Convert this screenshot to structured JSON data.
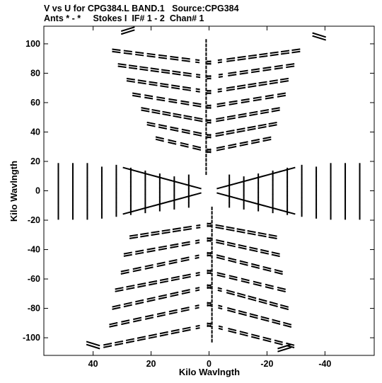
{
  "header": {
    "line1": "V vs U for CPG384.L BAND.1   Source:CPG384",
    "line2": "Ants * - *     Stokes I  IF# 1 - 2  Chan# 1"
  },
  "chart_data": {
    "type": "scatter",
    "title": "V vs U for CPG384.L BAND.1   Source:CPG384",
    "subtitle": "Ants * - *     Stokes I  IF# 1 - 2  Chan# 1",
    "xlabel": "Kilo Wavlngth",
    "ylabel": "Kilo Wavlngth",
    "xlim": [
      57,
      -57
    ],
    "ylim": [
      -112,
      112
    ],
    "x_reversed": true,
    "grid": false,
    "legend": "none",
    "x_ticks": [
      40,
      20,
      0,
      -20,
      -40
    ],
    "y_ticks": [
      100,
      80,
      60,
      40,
      20,
      0,
      -20,
      -40,
      -60,
      -80,
      -100
    ],
    "marker": "short line segments (uv tracks)",
    "color": "#000000",
    "upper_arms": [
      {
        "y": 96,
        "x_left": 32,
        "x_right": -30,
        "x_vertex": 0,
        "y_vertex": 88
      },
      {
        "y": 86,
        "x_left": 30,
        "x_right": -28,
        "x_vertex": 0,
        "y_vertex": 78
      },
      {
        "y": 76,
        "x_left": 27,
        "x_right": -26,
        "x_vertex": 0,
        "y_vertex": 68
      },
      {
        "y": 66,
        "x_left": 25,
        "x_right": -25,
        "x_vertex": 0,
        "y_vertex": 58
      },
      {
        "y": 56,
        "x_left": 22,
        "x_right": -23,
        "x_vertex": 0,
        "y_vertex": 48
      },
      {
        "y": 46,
        "x_left": 20,
        "x_right": -22,
        "x_vertex": 0,
        "y_vertex": 38
      },
      {
        "y": 36,
        "x_left": 17,
        "x_right": -20,
        "x_vertex": 0,
        "y_vertex": 28
      }
    ],
    "lower_arms": [
      {
        "y": -32,
        "x_left": 26,
        "x_right": -22,
        "x_vertex": 0,
        "y_vertex": -24
      },
      {
        "y": -44,
        "x_left": 28,
        "x_right": -23,
        "x_vertex": 0,
        "y_vertex": -34
      },
      {
        "y": -56,
        "x_left": 29,
        "x_right": -24,
        "x_vertex": 0,
        "y_vertex": -44
      },
      {
        "y": -68,
        "x_left": 31,
        "x_right": -25,
        "x_vertex": 0,
        "y_vertex": -56
      },
      {
        "y": -80,
        "x_left": 32,
        "x_right": -26,
        "x_vertex": 0,
        "y_vertex": -66
      },
      {
        "y": -92,
        "x_left": 33,
        "x_right": -27,
        "x_vertex": 0,
        "y_vertex": -78
      },
      {
        "y": -106,
        "x_left": 35,
        "x_right": -28,
        "x_vertex": 0,
        "y_vertex": -92
      }
    ],
    "outer_tips": [
      {
        "x": 28,
        "y": 110
      },
      {
        "x": -38,
        "y": 106
      },
      {
        "x": 40,
        "y": -106
      },
      {
        "x": -26,
        "y": -108
      }
    ],
    "horizontal_columns": [
      57,
      52,
      47,
      42,
      37,
      32,
      27,
      22,
      17,
      12,
      7,
      -7,
      -12,
      -17,
      -22,
      -27,
      -32,
      -37,
      -42,
      -47,
      -52,
      -57
    ],
    "horizontal_column_spread": 18
  }
}
